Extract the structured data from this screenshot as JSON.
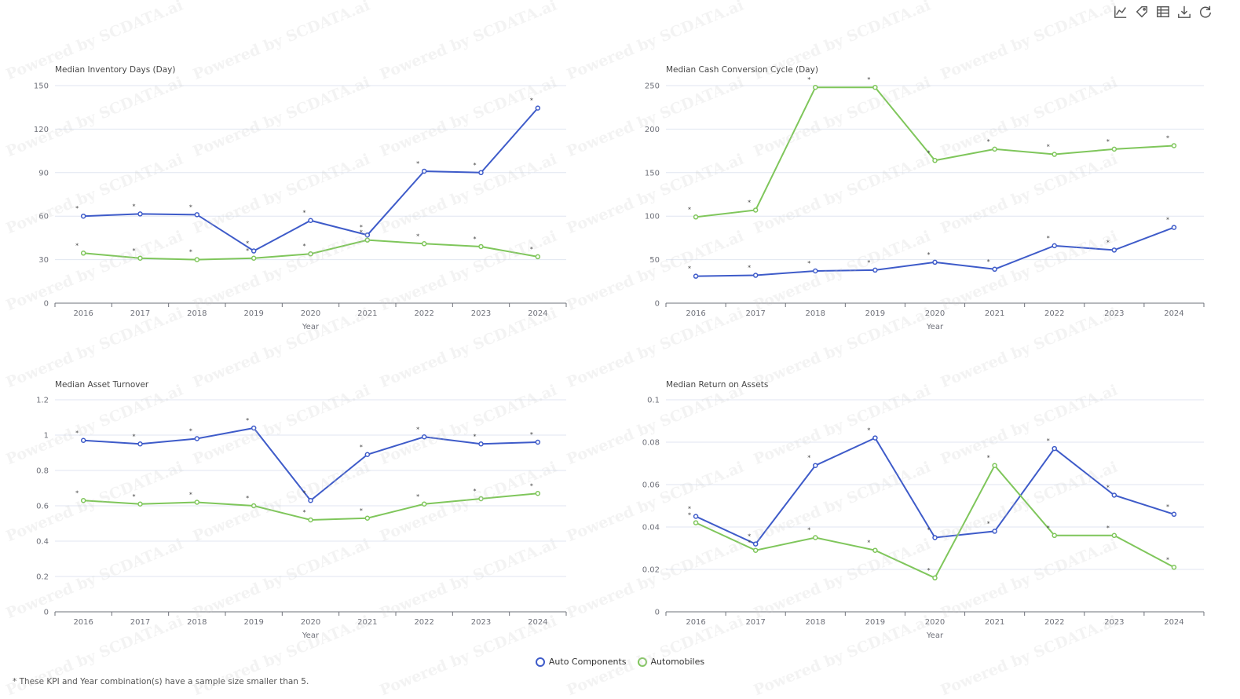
{
  "toolbar": {
    "icons": [
      "line-chart-icon",
      "tag-icon",
      "data-table-icon",
      "download-icon",
      "refresh-icon"
    ]
  },
  "watermark_text": "Powered by SCDATA.ai",
  "colors": {
    "auto_components": "#3e5bc9",
    "automobiles": "#7fc65b",
    "axis": "#6e7079",
    "grid": "#e0e6f1"
  },
  "legend": {
    "auto_components": "Auto Components",
    "automobiles": "Automobiles"
  },
  "footnote": "* These KPI and Year combination(s) have a sample size smaller than 5.",
  "chart_data": [
    {
      "type": "line",
      "title": "Median Inventory Days (Day)",
      "xlabel": "Year",
      "ylabel": "",
      "categories": [
        "2016",
        "2017",
        "2018",
        "2019",
        "2020",
        "2021",
        "2022",
        "2023",
        "2024"
      ],
      "ylim": [
        0,
        150
      ],
      "yticks": [
        "0",
        "30",
        "60",
        "90",
        "120",
        "150"
      ],
      "series": [
        {
          "name": "Auto Components",
          "values": [
            60,
            61.5,
            61,
            36,
            57,
            47,
            91,
            90,
            134.5
          ]
        },
        {
          "name": "Automobiles",
          "values": [
            34.5,
            31,
            30,
            31,
            34,
            43.5,
            41,
            39,
            32
          ]
        }
      ],
      "annotation": "*"
    },
    {
      "type": "line",
      "title": "Median Cash Conversion Cycle (Day)",
      "xlabel": "Year",
      "ylabel": "",
      "categories": [
        "2016",
        "2017",
        "2018",
        "2019",
        "2020",
        "2021",
        "2022",
        "2023",
        "2024"
      ],
      "ylim": [
        0,
        250
      ],
      "yticks": [
        "0",
        "50",
        "100",
        "150",
        "200",
        "250"
      ],
      "series": [
        {
          "name": "Auto Components",
          "values": [
            31,
            32,
            37,
            38,
            47,
            39,
            66,
            61,
            87
          ]
        },
        {
          "name": "Automobiles",
          "values": [
            99,
            107,
            248,
            248,
            164,
            177,
            171,
            177,
            181
          ]
        }
      ],
      "annotation": "*"
    },
    {
      "type": "line",
      "title": "Median Asset Turnover",
      "xlabel": "Year",
      "ylabel": "",
      "categories": [
        "2016",
        "2017",
        "2018",
        "2019",
        "2020",
        "2021",
        "2022",
        "2023",
        "2024"
      ],
      "ylim": [
        0,
        1.2
      ],
      "yticks": [
        "0",
        "0.2",
        "0.4",
        "0.6",
        "0.8",
        "1",
        "1.2"
      ],
      "series": [
        {
          "name": "Auto Components",
          "values": [
            0.97,
            0.95,
            0.98,
            1.04,
            0.63,
            0.89,
            0.99,
            0.95,
            0.96
          ]
        },
        {
          "name": "Automobiles",
          "values": [
            0.63,
            0.61,
            0.62,
            0.6,
            0.52,
            0.53,
            0.61,
            0.64,
            0.67
          ]
        }
      ],
      "annotation": "*"
    },
    {
      "type": "line",
      "title": "Median Return on Assets",
      "xlabel": "Year",
      "ylabel": "",
      "categories": [
        "2016",
        "2017",
        "2018",
        "2019",
        "2020",
        "2021",
        "2022",
        "2023",
        "2024"
      ],
      "ylim": [
        0,
        0.1
      ],
      "yticks": [
        "0",
        "0.02",
        "0.04",
        "0.06",
        "0.08",
        "0.1"
      ],
      "series": [
        {
          "name": "Auto Components",
          "values": [
            0.045,
            0.032,
            0.069,
            0.082,
            0.035,
            0.038,
            0.077,
            0.055,
            0.046
          ]
        },
        {
          "name": "Automobiles",
          "values": [
            0.042,
            0.029,
            0.035,
            0.029,
            0.016,
            0.069,
            0.036,
            0.036,
            0.021
          ]
        }
      ],
      "annotation": "*"
    }
  ]
}
